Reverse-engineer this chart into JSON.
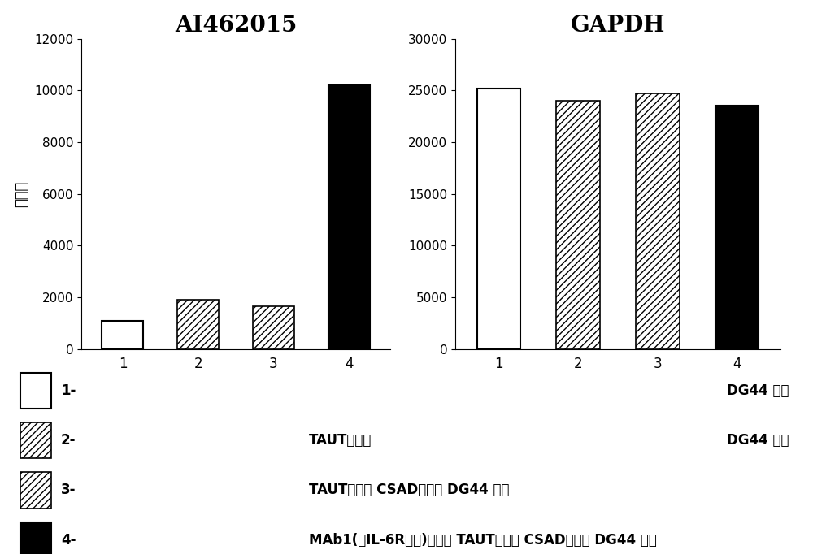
{
  "chart1_title": "AI462015",
  "chart2_title": "GAPDH",
  "ylabel": "信号値",
  "categories": [
    "1",
    "2",
    "3",
    "4"
  ],
  "chart1_values": [
    1100,
    1900,
    1650,
    10200
  ],
  "chart2_values": [
    25200,
    24000,
    24700,
    23500
  ],
  "chart1_ylim": [
    0,
    12000
  ],
  "chart2_ylim": [
    0,
    30000
  ],
  "chart1_yticks": [
    0,
    2000,
    4000,
    6000,
    8000,
    10000,
    12000
  ],
  "chart2_yticks": [
    0,
    5000,
    10000,
    15000,
    20000,
    25000,
    30000
  ],
  "bar_styles": [
    "white",
    "hatch1",
    "hatch2",
    "black"
  ],
  "background_color": "#ffffff",
  "legend_box_labels": [
    "1-",
    "2-",
    "3-",
    "4-"
  ],
  "legend_mid_texts": [
    "",
    "TAUT强表达",
    "TAUT强表达 CSAD强表达 DG44 细胞",
    "MAb1(抗IL-6R抗体)强表达 TAUT强表达 CSAD强表达 DG44 细胞"
  ],
  "legend_right_texts": [
    "DG44 细胞",
    "DG44 细胞",
    "",
    ""
  ]
}
